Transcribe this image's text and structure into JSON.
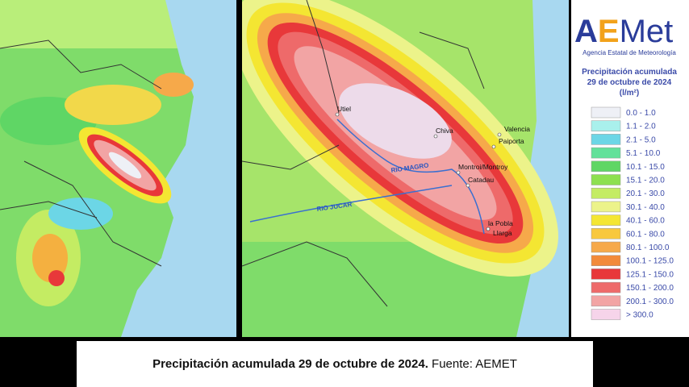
{
  "logo": {
    "parts": [
      "A",
      "E",
      "Met"
    ],
    "subtitle": "Agencia Estatal de Meteorología"
  },
  "legend": {
    "title": [
      "Precipitación acumulada",
      "29 de octubre de 2024",
      "(l/m²)"
    ],
    "items": [
      {
        "label": "0.0 - 1.0",
        "color": "#eef0f6"
      },
      {
        "label": "1.1 - 2.0",
        "color": "#a9f0ec"
      },
      {
        "label": "2.1 - 5.0",
        "color": "#6cd6e6"
      },
      {
        "label": "5.1 - 10.0",
        "color": "#62e19a"
      },
      {
        "label": "10.1 - 15.0",
        "color": "#5fd665"
      },
      {
        "label": "15.1 - 20.0",
        "color": "#8de04f"
      },
      {
        "label": "20.1 - 30.0",
        "color": "#c4ec63"
      },
      {
        "label": "30.1 - 40.0",
        "color": "#ecf38a"
      },
      {
        "label": "40.1 - 60.0",
        "color": "#f4e632"
      },
      {
        "label": "60.1 - 80.0",
        "color": "#f8c83e"
      },
      {
        "label": "80.1 - 100.0",
        "color": "#f6a94a"
      },
      {
        "label": "100.1 - 125.0",
        "color": "#f28a3a"
      },
      {
        "label": "125.1 - 150.0",
        "color": "#e8383a"
      },
      {
        "label": "150.1 - 200.0",
        "color": "#ee6a6a"
      },
      {
        "label": "200.1 - 300.0",
        "color": "#f2a4a4"
      },
      {
        "label": "> 300.0",
        "color": "#f6d4ea"
      }
    ]
  },
  "map_labels": [
    "Utiel",
    "Chiva",
    "Valencia",
    "Paiporta",
    "Montroi/Montroy",
    "Catadau",
    "la Pobla",
    "Llarga",
    "RIO MAGRO",
    "RIO JUCAR"
  ],
  "caption": {
    "bold": "Precipitación acumulada 29 de octubre de 2024.",
    "source": " Fuente: AEMET"
  }
}
